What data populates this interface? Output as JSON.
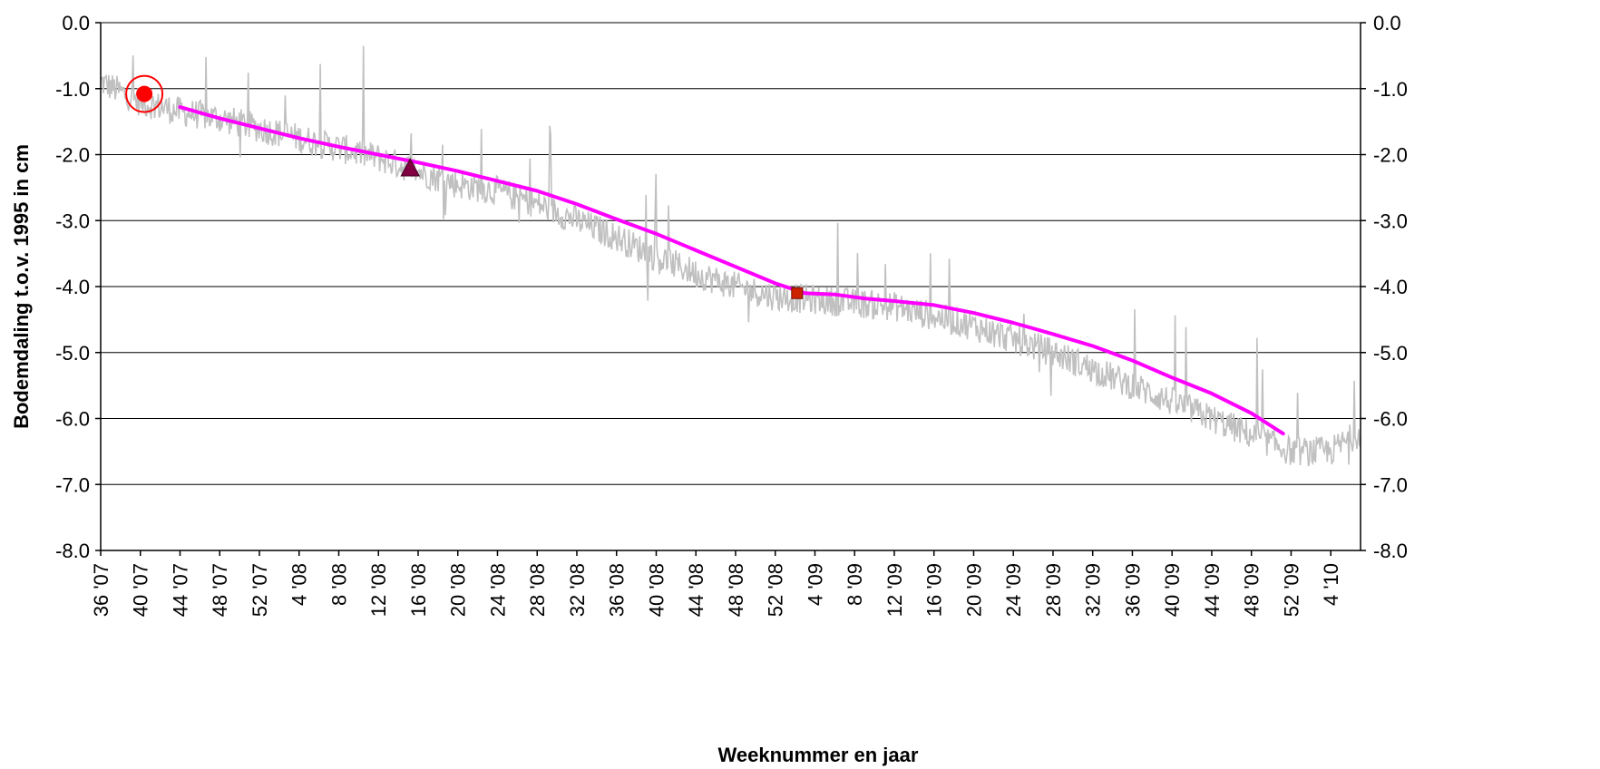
{
  "chart_data": {
    "type": "line",
    "title": "",
    "xlabel": "Weeknummer en jaar",
    "ylabel": "Bodemdaling t.o.v. 1995 in cm",
    "ylim": [
      -8.0,
      0.0
    ],
    "y_ticks": [
      "0.0",
      "-1.0",
      "-2.0",
      "-3.0",
      "-4.0",
      "-5.0",
      "-6.0",
      "-7.0",
      "-8.0"
    ],
    "y_tick_values": [
      0,
      -1,
      -2,
      -3,
      -4,
      -5,
      -6,
      -7,
      -8
    ],
    "x_ticks": [
      "36 '07",
      "40 '07",
      "44 '07",
      "48 '07",
      "52 '07",
      "4 '08",
      "8 '08",
      "12 '08",
      "16 '08",
      "20 '08",
      "24 '08",
      "28 '08",
      "32 '08",
      "36 '08",
      "40 '08",
      "44 '08",
      "48 '08",
      "52 '08",
      "4 '09",
      "8 '09",
      "12 '09",
      "16 '09",
      "20 '09",
      "24 '09",
      "28 '09",
      "32 '09",
      "36 '09",
      "40 '09",
      "44 '09",
      "48 '09",
      "52 '09",
      "4 '10"
    ],
    "grid": true,
    "secondary_y_axis": true,
    "series": [
      {
        "color": "#c0c0c0",
        "x_index": [
          0,
          2,
          4,
          6,
          8,
          10,
          12,
          14,
          16,
          18,
          20,
          22,
          24,
          26,
          28,
          30,
          32,
          34,
          36,
          38,
          40,
          42,
          44,
          46,
          48,
          50,
          52,
          54,
          56,
          58,
          60,
          62,
          63.5
        ],
        "values": [
          -0.9,
          -1.2,
          -1.35,
          -1.45,
          -1.6,
          -1.75,
          -1.9,
          -2.05,
          -2.25,
          -2.45,
          -2.55,
          -2.75,
          -3.0,
          -3.25,
          -3.55,
          -3.8,
          -4.0,
          -4.15,
          -4.2,
          -4.25,
          -4.3,
          -4.45,
          -4.6,
          -4.8,
          -5.0,
          -5.25,
          -5.5,
          -5.75,
          -6.0,
          -6.25,
          -6.5,
          -6.5,
          -6.2
        ],
        "noise_amplitude": 0.45
      },
      {
        "color": "#ff00ff",
        "x_index": [
          4,
          6,
          8,
          10,
          12,
          14,
          16,
          18,
          20,
          22,
          24,
          26,
          28,
          30,
          32,
          34,
          35.5,
          37,
          38.5,
          40,
          42,
          44,
          46,
          48,
          50,
          52,
          54,
          56,
          58,
          59.6
        ],
        "values": [
          -1.28,
          -1.45,
          -1.6,
          -1.75,
          -1.88,
          -2.0,
          -2.12,
          -2.25,
          -2.4,
          -2.55,
          -2.75,
          -2.98,
          -3.2,
          -3.45,
          -3.7,
          -3.95,
          -4.1,
          -4.12,
          -4.18,
          -4.22,
          -4.28,
          -4.4,
          -4.55,
          -4.72,
          -4.9,
          -5.12,
          -5.38,
          -5.62,
          -5.92,
          -6.23
        ]
      }
    ],
    "markers": [
      {
        "shape": "circle-target",
        "x_index": 2.2,
        "value": -1.08,
        "color": "#ff0000"
      },
      {
        "shape": "triangle",
        "x_index": 15.6,
        "value": -2.2,
        "color": "#800040"
      },
      {
        "shape": "square",
        "x_index": 35.1,
        "value": -4.1,
        "color": "#cc2200"
      }
    ]
  }
}
